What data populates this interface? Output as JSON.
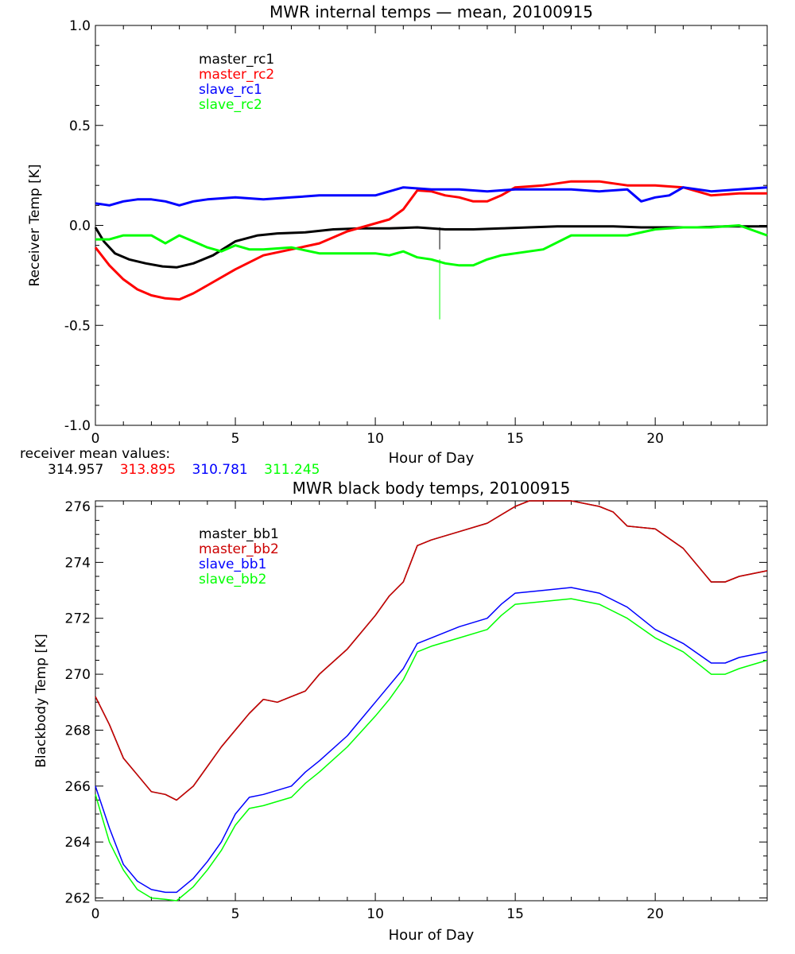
{
  "chart_data": [
    {
      "type": "line",
      "title": "MWR internal temps — mean, 20100915",
      "xlabel": "Hour of Day",
      "ylabel": "Receiver Temp [K]",
      "xlim": [
        0,
        24
      ],
      "ylim": [
        -1.0,
        1.0
      ],
      "xticks": [
        0,
        5,
        10,
        15,
        20
      ],
      "yticks": [
        -1.0,
        -0.5,
        0.0,
        0.5,
        1.0
      ],
      "ytick_labels": [
        "-1.0",
        "-0.5",
        "0.0",
        "0.5",
        "1.0"
      ],
      "grid": false,
      "legend": "top-left",
      "series": [
        {
          "name": "master_rc1",
          "color": "#000000",
          "x": [
            0.0,
            0.3,
            0.7,
            1.2,
            1.8,
            2.4,
            2.9,
            3.5,
            4.2,
            5.0,
            5.8,
            6.5,
            7.5,
            8.5,
            9.5,
            10.5,
            11.5,
            12.5,
            13.5,
            14.5,
            15.5,
            16.5,
            17.5,
            18.5,
            19.5,
            20.5,
            21.5,
            22.5,
            23.5,
            24.0
          ],
          "y": [
            -0.01,
            -0.08,
            -0.14,
            -0.17,
            -0.19,
            -0.205,
            -0.21,
            -0.19,
            -0.15,
            -0.08,
            -0.05,
            -0.04,
            -0.035,
            -0.02,
            -0.015,
            -0.015,
            -0.01,
            -0.02,
            -0.02,
            -0.015,
            -0.01,
            -0.005,
            -0.005,
            -0.005,
            -0.01,
            -0.01,
            -0.01,
            -0.005,
            -0.005,
            -0.005
          ]
        },
        {
          "name": "master_rc2",
          "color": "#ff0000",
          "x": [
            0.0,
            0.5,
            1.0,
            1.5,
            2.0,
            2.5,
            3.0,
            3.5,
            4.0,
            5.0,
            6.0,
            7.0,
            8.0,
            9.0,
            10.0,
            10.5,
            11.0,
            11.5,
            12.0,
            12.5,
            13.0,
            13.5,
            14.0,
            14.5,
            15.0,
            16.0,
            17.0,
            18.0,
            19.0,
            20.0,
            21.0,
            22.0,
            23.0,
            24.0
          ],
          "y": [
            -0.11,
            -0.2,
            -0.27,
            -0.32,
            -0.35,
            -0.365,
            -0.37,
            -0.34,
            -0.3,
            -0.22,
            -0.15,
            -0.12,
            -0.09,
            -0.03,
            0.01,
            0.03,
            0.08,
            0.175,
            0.17,
            0.15,
            0.14,
            0.12,
            0.12,
            0.15,
            0.19,
            0.2,
            0.22,
            0.22,
            0.2,
            0.2,
            0.19,
            0.15,
            0.16,
            0.16
          ]
        },
        {
          "name": "slave_rc1",
          "color": "#0000ff",
          "x": [
            0.0,
            0.5,
            1.0,
            1.5,
            2.0,
            2.5,
            3.0,
            3.5,
            4.0,
            5.0,
            6.0,
            7.0,
            8.0,
            9.0,
            10.0,
            11.0,
            12.0,
            13.0,
            14.0,
            15.0,
            16.0,
            17.0,
            18.0,
            19.0,
            19.5,
            20.0,
            20.5,
            21.0,
            22.0,
            23.0,
            24.0
          ],
          "y": [
            0.11,
            0.1,
            0.12,
            0.13,
            0.13,
            0.12,
            0.1,
            0.12,
            0.13,
            0.14,
            0.13,
            0.14,
            0.15,
            0.15,
            0.15,
            0.19,
            0.18,
            0.18,
            0.17,
            0.18,
            0.18,
            0.18,
            0.17,
            0.18,
            0.12,
            0.14,
            0.15,
            0.19,
            0.17,
            0.18,
            0.19
          ]
        },
        {
          "name": "slave_rc2",
          "color": "#00ff00",
          "x": [
            0.0,
            0.5,
            1.0,
            1.5,
            2.0,
            2.5,
            3.0,
            3.5,
            4.0,
            4.5,
            5.0,
            5.5,
            6.0,
            7.0,
            8.0,
            9.0,
            10.0,
            10.5,
            11.0,
            11.5,
            12.0,
            12.5,
            13.0,
            13.5,
            14.0,
            14.5,
            15.0,
            16.0,
            17.0,
            18.0,
            19.0,
            20.0,
            21.0,
            22.0,
            23.0,
            24.0
          ],
          "y": [
            -0.07,
            -0.07,
            -0.05,
            -0.05,
            -0.05,
            -0.09,
            -0.05,
            -0.08,
            -0.11,
            -0.13,
            -0.1,
            -0.12,
            -0.12,
            -0.11,
            -0.14,
            -0.14,
            -0.14,
            -0.15,
            -0.13,
            -0.16,
            -0.17,
            -0.19,
            -0.2,
            -0.2,
            -0.17,
            -0.15,
            -0.14,
            -0.12,
            -0.05,
            -0.05,
            -0.05,
            -0.02,
            -0.01,
            -0.01,
            0.0,
            -0.05
          ]
        }
      ],
      "spikes": [
        {
          "series": "master_rc1",
          "x": 12.3,
          "y0": -0.01,
          "y1": -0.12
        },
        {
          "series": "slave_rc2",
          "x": 12.3,
          "y0": -0.17,
          "y1": -0.47
        }
      ]
    },
    {
      "type": "line",
      "title": "MWR black body temps, 20100915",
      "xlabel": "Hour of Day",
      "ylabel": "Blackbody Temp [K]",
      "xlim": [
        0,
        24
      ],
      "ylim": [
        261.9,
        276.2
      ],
      "xticks": [
        0,
        5,
        10,
        15,
        20
      ],
      "yticks": [
        262,
        264,
        266,
        268,
        270,
        272,
        274,
        276
      ],
      "grid": false,
      "legend": "top-left",
      "series": [
        {
          "name": "master_bb1",
          "color": "#000000",
          "x": [
            0.0,
            0.5,
            1.0,
            1.5,
            2.0,
            2.5,
            2.9,
            3.5,
            4.0,
            4.5,
            5.0,
            5.5,
            6.0,
            6.5,
            7.0,
            7.5,
            8.0,
            9.0,
            10.0,
            10.5,
            11.0,
            11.5,
            12.0,
            13.0,
            14.0,
            15.0,
            15.5,
            16.0,
            17.0,
            18.0,
            18.5,
            19.0,
            20.0,
            21.0,
            22.0,
            22.5,
            23.0,
            24.0
          ],
          "y": [
            269.2,
            268.2,
            267.0,
            266.4,
            265.8,
            265.7,
            265.5,
            266.0,
            266.7,
            267.4,
            268.0,
            268.6,
            269.1,
            269.0,
            269.2,
            269.4,
            270.0,
            270.9,
            272.1,
            272.8,
            273.3,
            274.6,
            274.8,
            275.1,
            275.4,
            276.0,
            276.2,
            276.2,
            276.2,
            276.0,
            275.8,
            275.3,
            275.2,
            274.5,
            273.3,
            273.3,
            273.5,
            273.7
          ]
        },
        {
          "name": "master_bb2",
          "color": "#cc0000",
          "x": [
            0.0,
            0.5,
            1.0,
            1.5,
            2.0,
            2.5,
            2.9,
            3.5,
            4.0,
            4.5,
            5.0,
            5.5,
            6.0,
            6.5,
            7.0,
            7.5,
            8.0,
            9.0,
            10.0,
            10.5,
            11.0,
            11.5,
            12.0,
            13.0,
            14.0,
            15.0,
            15.5,
            16.0,
            17.0,
            18.0,
            18.5,
            19.0,
            20.0,
            21.0,
            22.0,
            22.5,
            23.0,
            24.0
          ],
          "y": [
            269.2,
            268.2,
            267.0,
            266.4,
            265.8,
            265.7,
            265.5,
            266.0,
            266.7,
            267.4,
            268.0,
            268.6,
            269.1,
            269.0,
            269.2,
            269.4,
            270.0,
            270.9,
            272.1,
            272.8,
            273.3,
            274.6,
            274.8,
            275.1,
            275.4,
            276.0,
            276.2,
            276.2,
            276.2,
            276.0,
            275.8,
            275.3,
            275.2,
            274.5,
            273.3,
            273.3,
            273.5,
            273.7
          ]
        },
        {
          "name": "slave_bb1",
          "color": "#0000ff",
          "x": [
            0.0,
            0.5,
            1.0,
            1.5,
            2.0,
            2.5,
            2.9,
            3.5,
            4.0,
            4.5,
            5.0,
            5.5,
            6.0,
            7.0,
            7.5,
            8.0,
            9.0,
            10.0,
            10.5,
            11.0,
            11.5,
            12.0,
            13.0,
            14.0,
            14.5,
            15.0,
            16.0,
            17.0,
            18.0,
            19.0,
            20.0,
            21.0,
            22.0,
            22.5,
            23.0,
            24.0
          ],
          "y": [
            266.0,
            264.5,
            263.2,
            262.6,
            262.3,
            262.2,
            262.2,
            262.7,
            263.3,
            264.0,
            265.0,
            265.6,
            265.7,
            266.0,
            266.5,
            266.9,
            267.8,
            269.0,
            269.6,
            270.2,
            271.1,
            271.3,
            271.7,
            272.0,
            272.5,
            272.9,
            273.0,
            273.1,
            272.9,
            272.4,
            271.6,
            271.1,
            270.4,
            270.4,
            270.6,
            270.8
          ]
        },
        {
          "name": "slave_bb2",
          "color": "#00ff00",
          "x": [
            0.0,
            0.5,
            1.0,
            1.5,
            2.0,
            2.5,
            2.9,
            3.5,
            4.0,
            4.5,
            5.0,
            5.5,
            6.0,
            7.0,
            7.5,
            8.0,
            9.0,
            10.0,
            10.5,
            11.0,
            11.5,
            12.0,
            13.0,
            14.0,
            14.5,
            15.0,
            16.0,
            17.0,
            18.0,
            19.0,
            20.0,
            21.0,
            22.0,
            22.5,
            23.0,
            24.0
          ],
          "y": [
            265.7,
            264.0,
            263.0,
            262.3,
            262.0,
            261.95,
            261.9,
            262.4,
            263.0,
            263.7,
            264.6,
            265.2,
            265.3,
            265.6,
            266.1,
            266.5,
            267.4,
            268.5,
            269.1,
            269.8,
            270.8,
            271.0,
            271.3,
            271.6,
            272.1,
            272.5,
            272.6,
            272.7,
            272.5,
            272.0,
            271.3,
            270.8,
            270.0,
            270.0,
            270.2,
            270.5
          ]
        }
      ]
    }
  ],
  "mean_values": {
    "label": "receiver mean values:",
    "values": [
      {
        "text": "314.957",
        "color": "#000000"
      },
      {
        "text": "313.895",
        "color": "#ff0000"
      },
      {
        "text": "310.781",
        "color": "#0000ff"
      },
      {
        "text": "311.245",
        "color": "#00ff00"
      }
    ]
  }
}
